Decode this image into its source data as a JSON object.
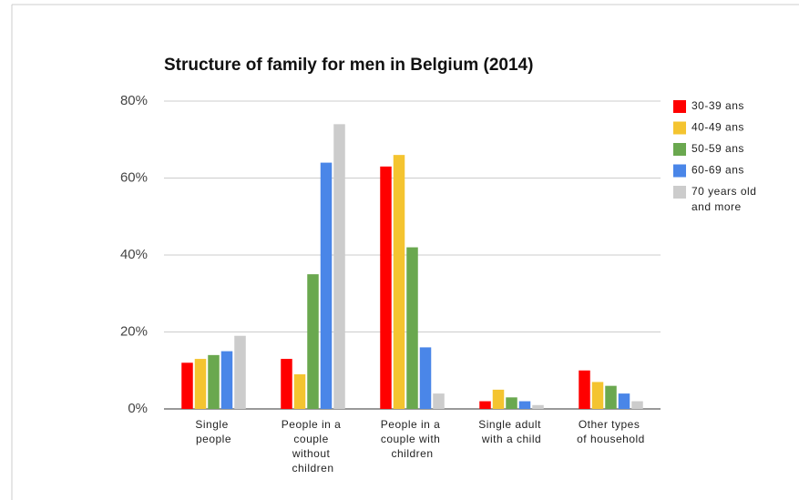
{
  "chart_data": {
    "type": "bar",
    "title": "Structure of family for men in Belgium (2014)",
    "categories": [
      "Single people",
      "People in a couple without children",
      "People in a couple with children",
      "Single adult with a child",
      "Other types of household"
    ],
    "series": [
      {
        "name": "30-39 ans",
        "color": "#ff0000",
        "values": [
          12,
          13,
          63,
          2,
          10
        ]
      },
      {
        "name": "40-49 ans",
        "color": "#f4c430",
        "values": [
          13,
          9,
          66,
          5,
          7
        ]
      },
      {
        "name": "50-59 ans",
        "color": "#6aa84f",
        "values": [
          14,
          35,
          42,
          3,
          6
        ]
      },
      {
        "name": "60-69 ans",
        "color": "#4a86e8",
        "values": [
          15,
          64,
          16,
          2,
          4
        ]
      },
      {
        "name": "70 years old and more",
        "color": "#cccccc",
        "values": [
          19,
          74,
          4,
          1,
          2
        ]
      }
    ],
    "ylim": [
      0,
      80
    ],
    "yticks": [
      {
        "value": 0,
        "label": "0%"
      },
      {
        "value": 20,
        "label": "20%"
      },
      {
        "value": 40,
        "label": "40%"
      },
      {
        "value": 60,
        "label": "60%"
      },
      {
        "value": 80,
        "label": "80%"
      }
    ],
    "grid": true,
    "legend": "right"
  }
}
